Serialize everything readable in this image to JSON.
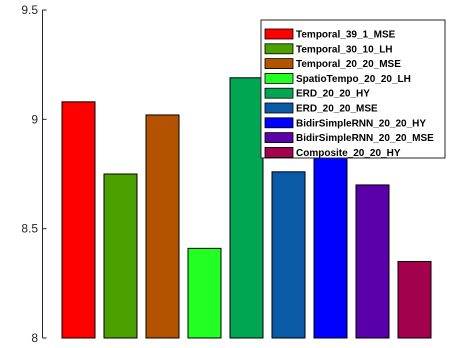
{
  "chart_data": {
    "type": "bar",
    "title": "",
    "xlabel": "",
    "ylabel": "",
    "ylim": [
      8,
      9.5
    ],
    "yticks": [
      8,
      8.5,
      9,
      9.5
    ],
    "ytick_labels": [
      "8",
      "8.5",
      "9",
      "9.5"
    ],
    "grid": false,
    "legend_position": "top-right",
    "series": [
      {
        "name": "Temporal_39_1_MSE",
        "value": 9.08,
        "color": "#ff0000"
      },
      {
        "name": "Temporal_30_10_LH",
        "value": 8.75,
        "color": "#4ca000"
      },
      {
        "name": "Temporal_20_20_MSE",
        "value": 9.02,
        "color": "#b35300"
      },
      {
        "name": "SpatioTempo_20_20_LH",
        "value": 8.41,
        "color": "#22ff22"
      },
      {
        "name": "ERD_20_20_HY",
        "value": 9.19,
        "color": "#00a651"
      },
      {
        "name": "ERD_20_20_MSE",
        "value": 8.76,
        "color": "#0a5aa8"
      },
      {
        "name": "BidirSimpleRNN_20_20_HY",
        "value": 8.86,
        "color": "#0000ff"
      },
      {
        "name": "BidirSimpleRNN_20_20_MSE",
        "value": 8.7,
        "color": "#5a00aa"
      },
      {
        "name": "Composite_20_20_HY",
        "value": 8.35,
        "color": "#a3004e"
      }
    ]
  }
}
